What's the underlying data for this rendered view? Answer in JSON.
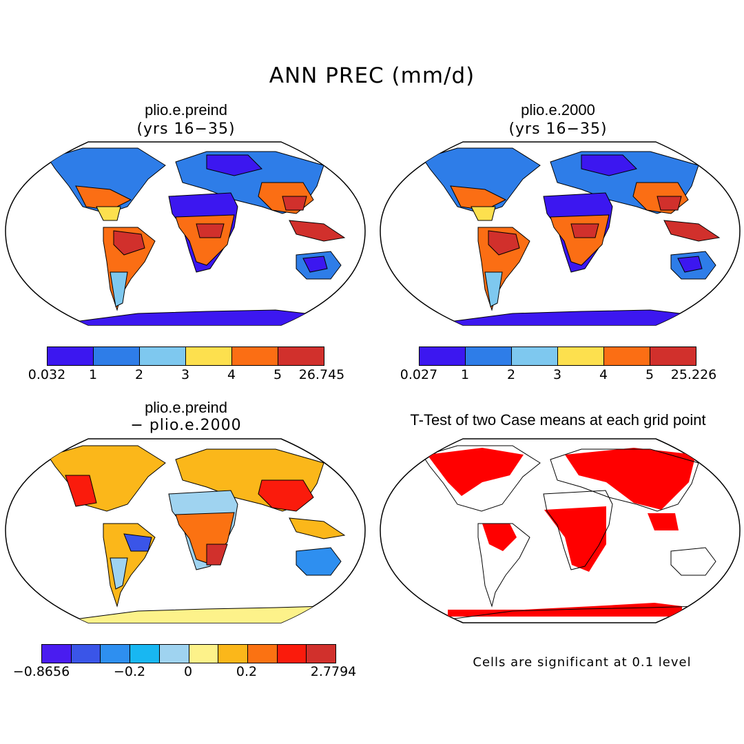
{
  "title": "ANN PREC (mm/d)",
  "panels": {
    "p1": {
      "title": "plio.e.preind",
      "subtitle": "(yrs 16−35)"
    },
    "p2": {
      "title": "plio.e.2000",
      "subtitle": "(yrs 16−35)"
    },
    "p3": {
      "title": "plio.e.preind",
      "subtitle": "− plio.e.2000"
    },
    "p4": {
      "title": "T-Test of two Case means at each grid point"
    }
  },
  "colorbars": {
    "p1": {
      "colors": [
        "#3c17f0",
        "#2e7de8",
        "#7ec8ef",
        "#fde04e",
        "#fb6e14",
        "#d1302c"
      ],
      "ticks": [
        "0.032",
        "1",
        "2",
        "3",
        "4",
        "5",
        "26.745"
      ]
    },
    "p2": {
      "colors": [
        "#3c17f0",
        "#2e7de8",
        "#7ec8ef",
        "#fde04e",
        "#fb6e14",
        "#d1302c"
      ],
      "ticks": [
        "0.027",
        "1",
        "2",
        "3",
        "4",
        "5",
        "25.226"
      ]
    },
    "p3": {
      "colors": [
        "#4a1cf0",
        "#3a55e8",
        "#2e8ff0",
        "#18b7f2",
        "#9fd3f0",
        "#fdf28a",
        "#fbb71a",
        "#fb7212",
        "#fa1b0c",
        "#d1302c"
      ],
      "ticks": [
        "−0.8656",
        "−0.2",
        "0",
        "0.2",
        "2.7794"
      ]
    }
  },
  "significance_note": "Cells are significant at 0.1 level",
  "significance_color": "#ff0000"
}
